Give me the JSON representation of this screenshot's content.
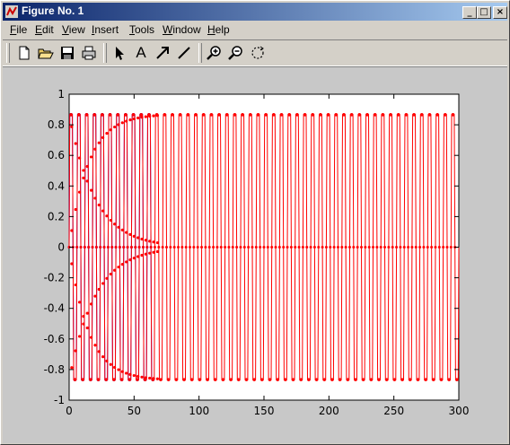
{
  "window": {
    "title": "Figure No. 1",
    "minimize": "_",
    "maximize": "□",
    "close": "×"
  },
  "menu": [
    "File",
    "Edit",
    "View",
    "Insert",
    "Tools",
    "Window",
    "Help"
  ],
  "menu_underline": [
    "F",
    "E",
    "V",
    "I",
    "T",
    "W",
    "H"
  ],
  "toolbar": {
    "icons": [
      "new-file-icon",
      "open-folder-icon",
      "save-icon",
      "print-icon",
      "pointer-arrow-icon",
      "text-icon",
      "arrow-icon",
      "line-icon",
      "zoom-in-icon",
      "zoom-out-icon",
      "rotate-icon"
    ],
    "text_tool_label": "A"
  },
  "colors": {
    "series1": "#0000ff",
    "series2": "#ff0000",
    "background": "#c8c8c8",
    "axes_bg": "#ffffff"
  },
  "chart_data": {
    "type": "line",
    "title": "",
    "xlabel": "",
    "ylabel": "",
    "xlim": [
      0,
      300
    ],
    "ylim": [
      -1,
      1
    ],
    "xticks": [
      0,
      50,
      100,
      150,
      200,
      250,
      300
    ],
    "yticks": [
      -1,
      -0.8,
      -0.6,
      -0.4,
      -0.2,
      0,
      0.2,
      0.4,
      0.6,
      0.8,
      1
    ],
    "xtick_labels": [
      "0",
      "50",
      "100",
      "150",
      "200",
      "250",
      "300"
    ],
    "ytick_labels": [
      "-1",
      "-0.8",
      "-0.6",
      "-0.4",
      "-0.2",
      "0",
      "0.2",
      "0.4",
      "0.6",
      "0.8",
      "1"
    ],
    "grid": false,
    "series": [
      {
        "color": "#0000ff",
        "marker": ".",
        "description": "oscillation between about ±0.866 and 0, transient decays by x≈65",
        "amplitude": 0.866,
        "period": 6,
        "decay_end": 65,
        "x_max": 65
      },
      {
        "color": "#ff0000",
        "marker": ".",
        "description": "oscillation between about ±0.866 and 0 continuing to x=300",
        "amplitude": 0.866,
        "period": 6,
        "x_max": 300
      }
    ]
  }
}
